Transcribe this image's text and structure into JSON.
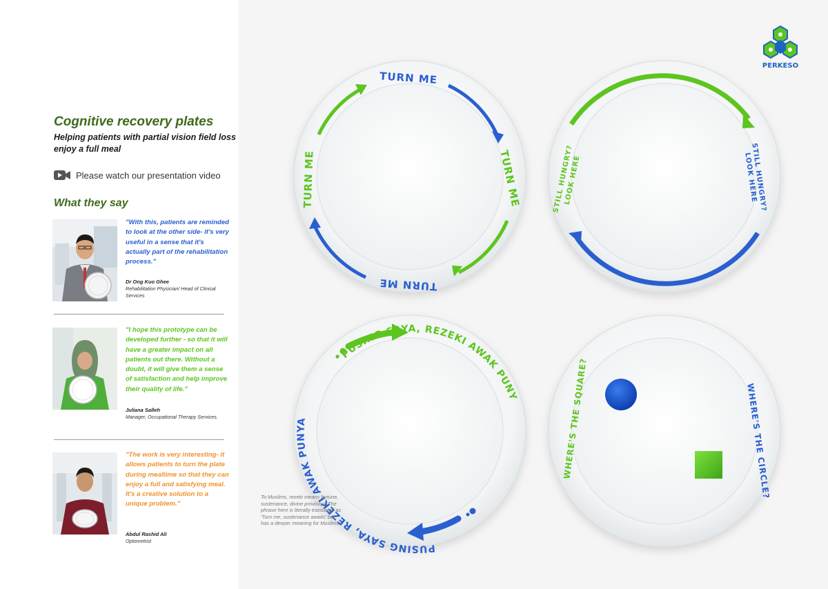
{
  "title": "Cognitive recovery plates",
  "subtitle": "Helping patients with partial vision field loss enjoy a full meal",
  "video": {
    "label": "Please watch our presentation video",
    "icon": "video-camera-icon"
  },
  "section_title": "What they say",
  "testimonials": [
    {
      "quote": "\"With this, patients are reminded to look at the other side- it's very useful in a sense that it's actually part of the rehabilitation process.\"",
      "name": "Dr Ong Kuo Ghee",
      "role": "Rehabilitation Physician/ Head of Clinical Services",
      "color": "#2a5fd0"
    },
    {
      "quote": "\"I hope this prototype can be developed further - so that it will have a greater impact on all patients out there. Without a doubt, it will give them a sense of satisfaction and help improve their quality of life.\"",
      "name": "Juliana Salleh",
      "role": "Manager, Occupational Therapy Services.",
      "color": "#5cc520"
    },
    {
      "quote": "\"The work is very interesting- it allows patients to turn the plate during mealtime so that they can enjoy a full and satisfying meal. It's a creative solution to a unique problem.\"",
      "name": "Abdul Rashid Ali",
      "role": "Optometrist",
      "color": "#f0922a"
    }
  ],
  "note": "To Muslims, rezeki means fortune, sustenance, divine provision. The phrase here is literally translated as 'Turn me, sustenance awaits' but has a deeper meaning for Muslims.",
  "logo": "PERKESO",
  "plates": {
    "turn_me": "TURN ME",
    "still_hungry": "STILL HUNGRY?",
    "look_here": "LOOK HERE",
    "pusing": "PUSING SAYA, REZEKI AWAK PUNYA",
    "where_square": "WHERE'S THE SQUARE?",
    "where_circle": "WHERE'S THE CIRCLE?"
  },
  "colors": {
    "green": "#5cc520",
    "blue": "#2a5fd0",
    "dark_green": "#3f6a1c"
  }
}
